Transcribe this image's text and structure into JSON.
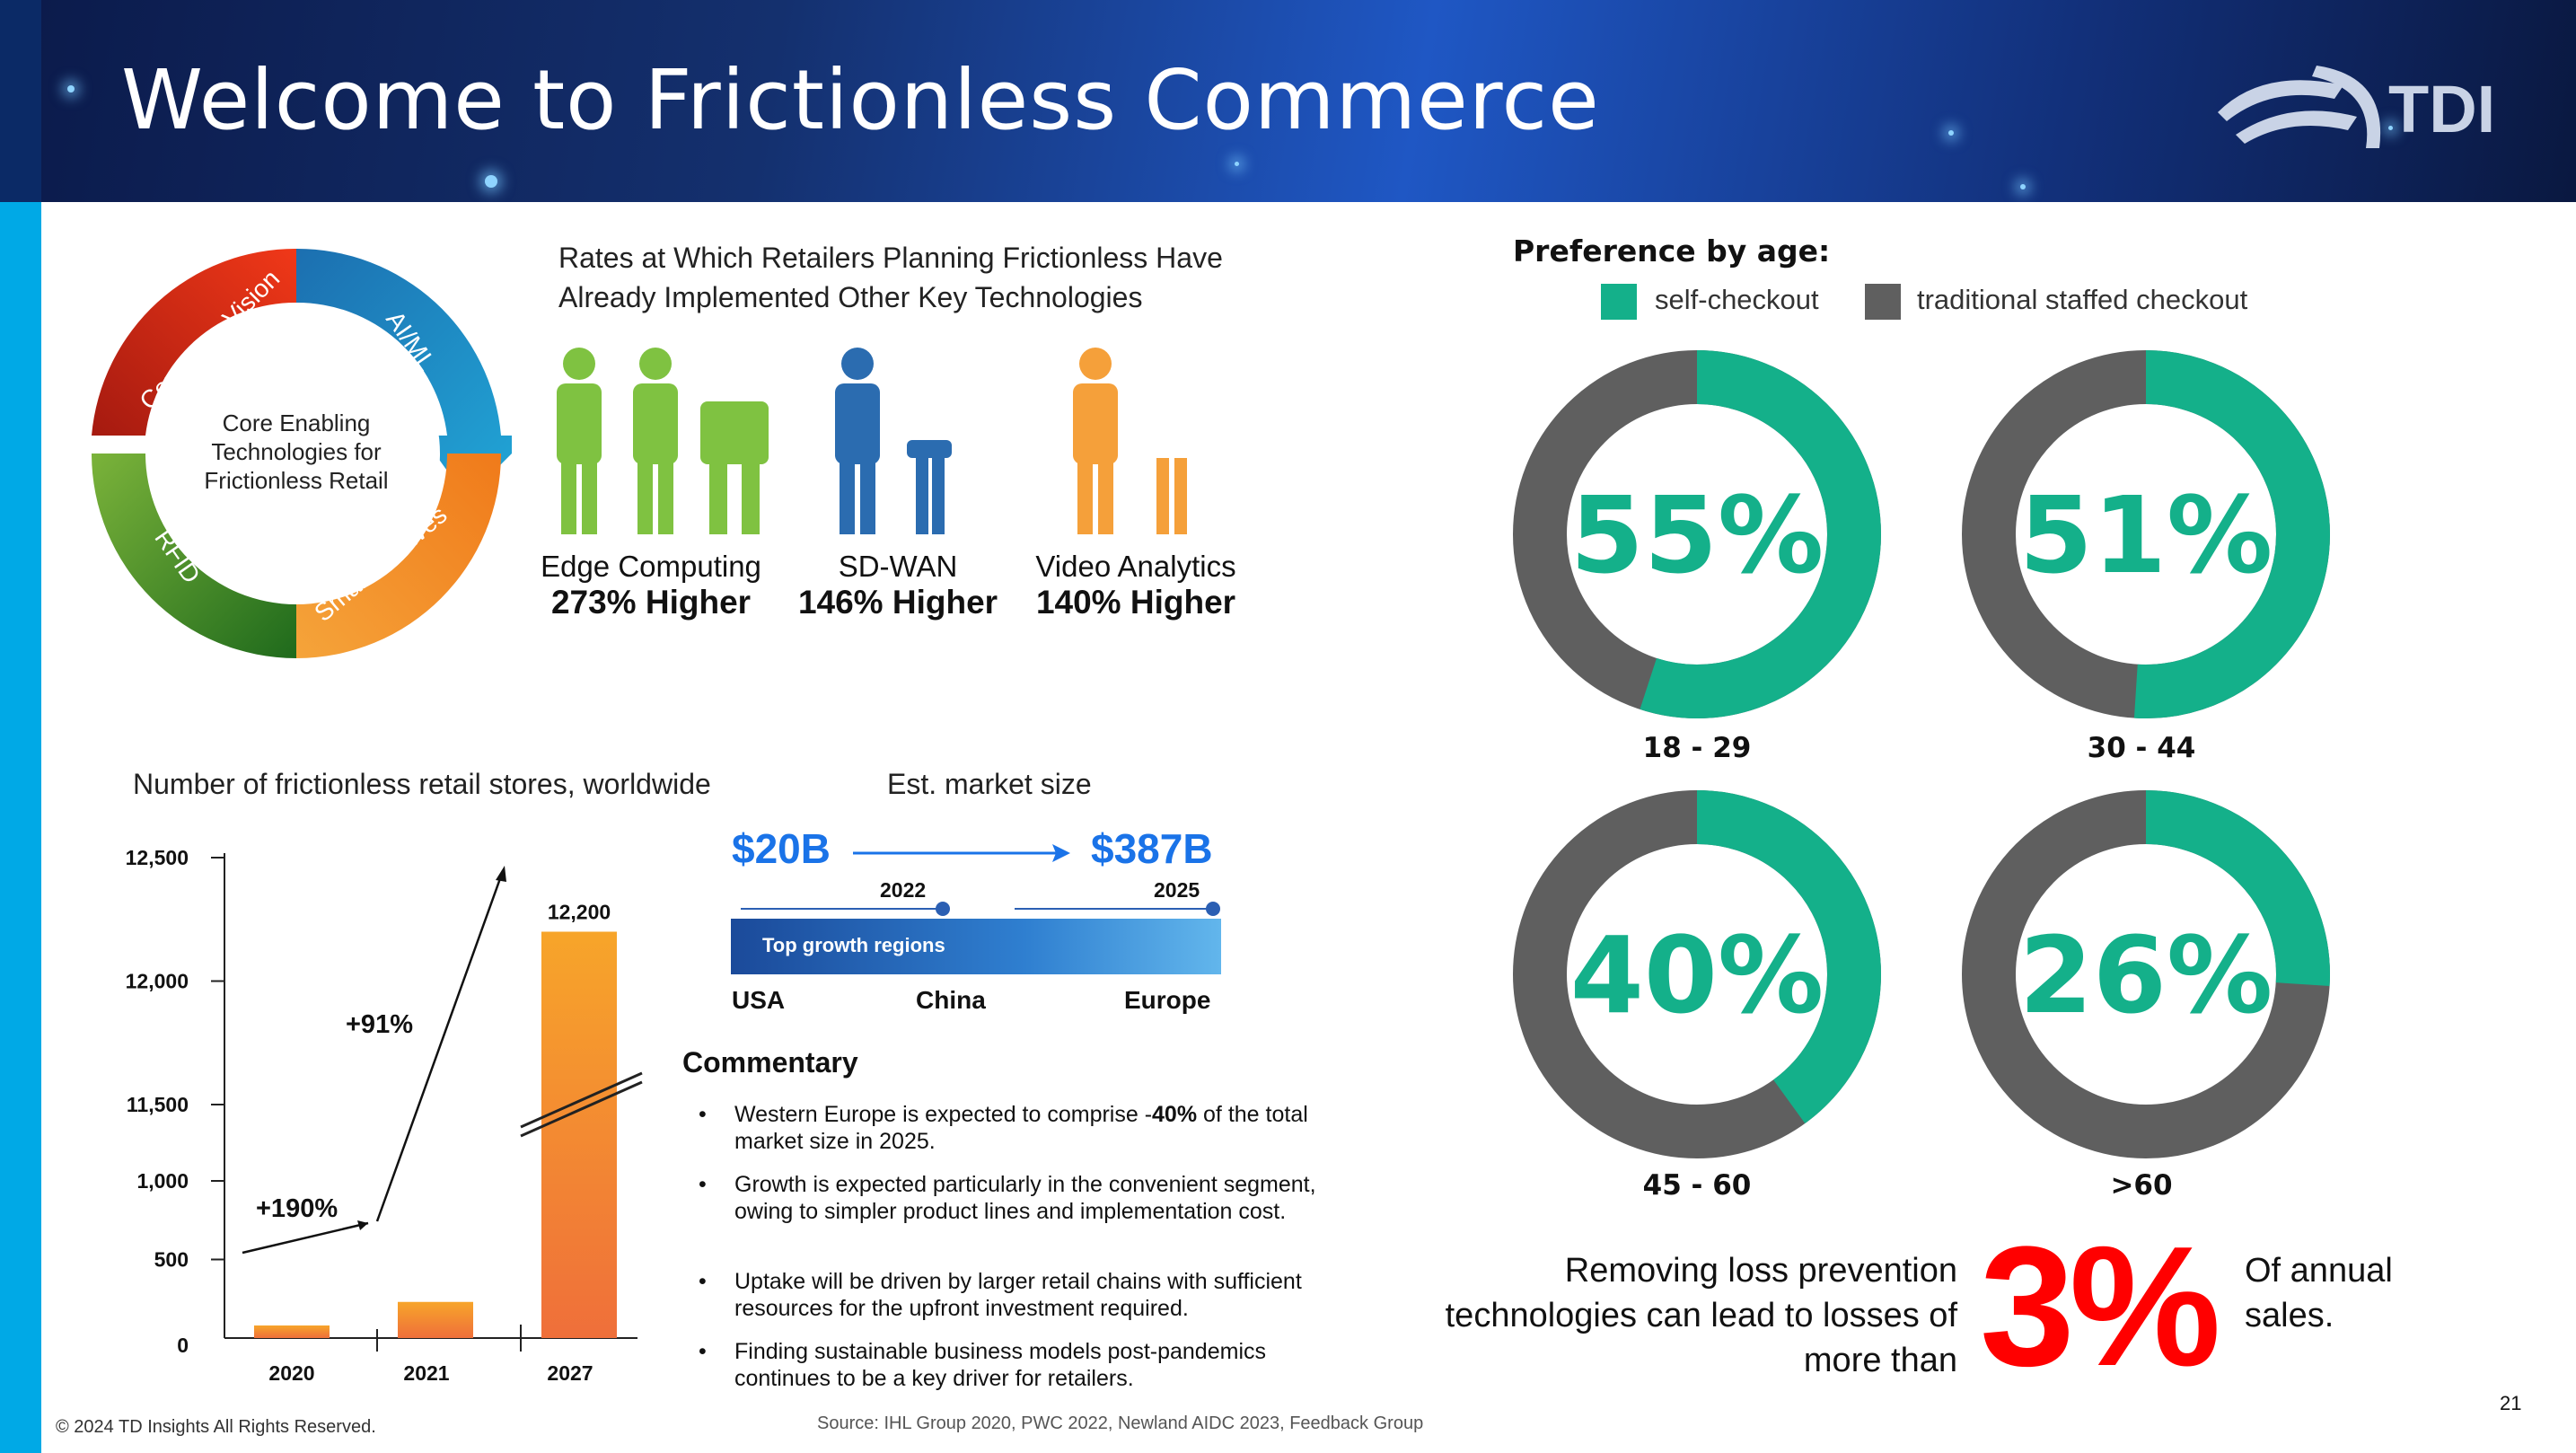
{
  "header": {
    "title": "Welcome to Frictionless Commerce",
    "logo_text": "TDI"
  },
  "cycle": {
    "center_label": [
      "Core Enabling",
      "Technologies for",
      "Frictionless Retail"
    ],
    "segments": [
      "Computer Vision",
      "AI/ML",
      "Smart Shelves",
      "RFID"
    ]
  },
  "tech_rates": {
    "heading": [
      "Rates at Which Retailers Planning Frictionless Have",
      "Already Implemented Other Key Technologies"
    ],
    "items": [
      {
        "label": "Edge Computing",
        "value": "273% Higher"
      },
      {
        "label": "SD-WAN",
        "value": "146% Higher"
      },
      {
        "label": "Video Analytics",
        "value": "140% Higher"
      }
    ]
  },
  "chart_data": [
    {
      "type": "bar",
      "title": "Number of frictionless retail stores, worldwide",
      "categories": [
        "2020",
        "2021",
        "2027"
      ],
      "values": [
        80,
        230,
        12200
      ],
      "data_labels": [
        "",
        "",
        "12,200"
      ],
      "y_ticks": [
        "12,500",
        "12,000",
        "11,500",
        "1,000",
        "500",
        "0"
      ],
      "axis_break": true,
      "annotations": [
        "+190%",
        "+91%"
      ]
    },
    {
      "type": "pie",
      "title": "Preference by age:",
      "legend": [
        "self-checkout",
        "traditional staffed checkout"
      ],
      "series": [
        {
          "name": "18 - 29",
          "values": [
            55,
            45
          ],
          "label": "55%"
        },
        {
          "name": "30 - 44",
          "values": [
            51,
            49
          ],
          "label": "51%"
        },
        {
          "name": "45 - 60",
          "values": [
            40,
            60
          ],
          "label": "40%"
        },
        {
          "name": ">60",
          "values": [
            26,
            74
          ],
          "label": "26%"
        }
      ],
      "colors": [
        "#14b08a",
        "#5f5f5f"
      ]
    }
  ],
  "market": {
    "title": "Est. market size",
    "from_value": "$20B",
    "to_value": "$387B",
    "from_year": "2022",
    "to_year": "2025",
    "band_label": "Top growth regions",
    "regions": [
      "USA",
      "China",
      "Europe"
    ]
  },
  "commentary": {
    "heading": "Commentary",
    "bullets": [
      {
        "pre": "Western Europe is expected to comprise -",
        "bold": "40%",
        "post": " of the total market size in 2025."
      },
      {
        "pre": "Growth is expected particularly in the convenient segment, owing to simpler product lines and implementation cost.",
        "bold": "",
        "post": ""
      },
      {
        "pre": "Uptake will be driven by larger retail chains with sufficient resources for the upfront investment required.",
        "bold": "",
        "post": ""
      },
      {
        "pre": "Finding sustainable business models post-pandemics continues to be a key driver for retailers.",
        "bold": "",
        "post": ""
      }
    ]
  },
  "loss": {
    "text": [
      "Removing loss prevention",
      "technologies can lead to losses of",
      "more than"
    ],
    "big_value": "3%",
    "suffix": [
      "Of annual",
      "sales."
    ]
  },
  "footer": {
    "copyright": "© 2024 TD Insights All Rights Reserved.",
    "source": "Source: IHL Group 2020, PWC 2022, Newland AIDC 2023, Feedback Group",
    "page_number": "21"
  },
  "colors": {
    "teal": "#14b08a",
    "gray": "#5f5f5f",
    "accent_blue": "#1a73e8",
    "red": "#ff0000",
    "orange": "#f5a52a",
    "sidebar": "#00a9e6"
  }
}
